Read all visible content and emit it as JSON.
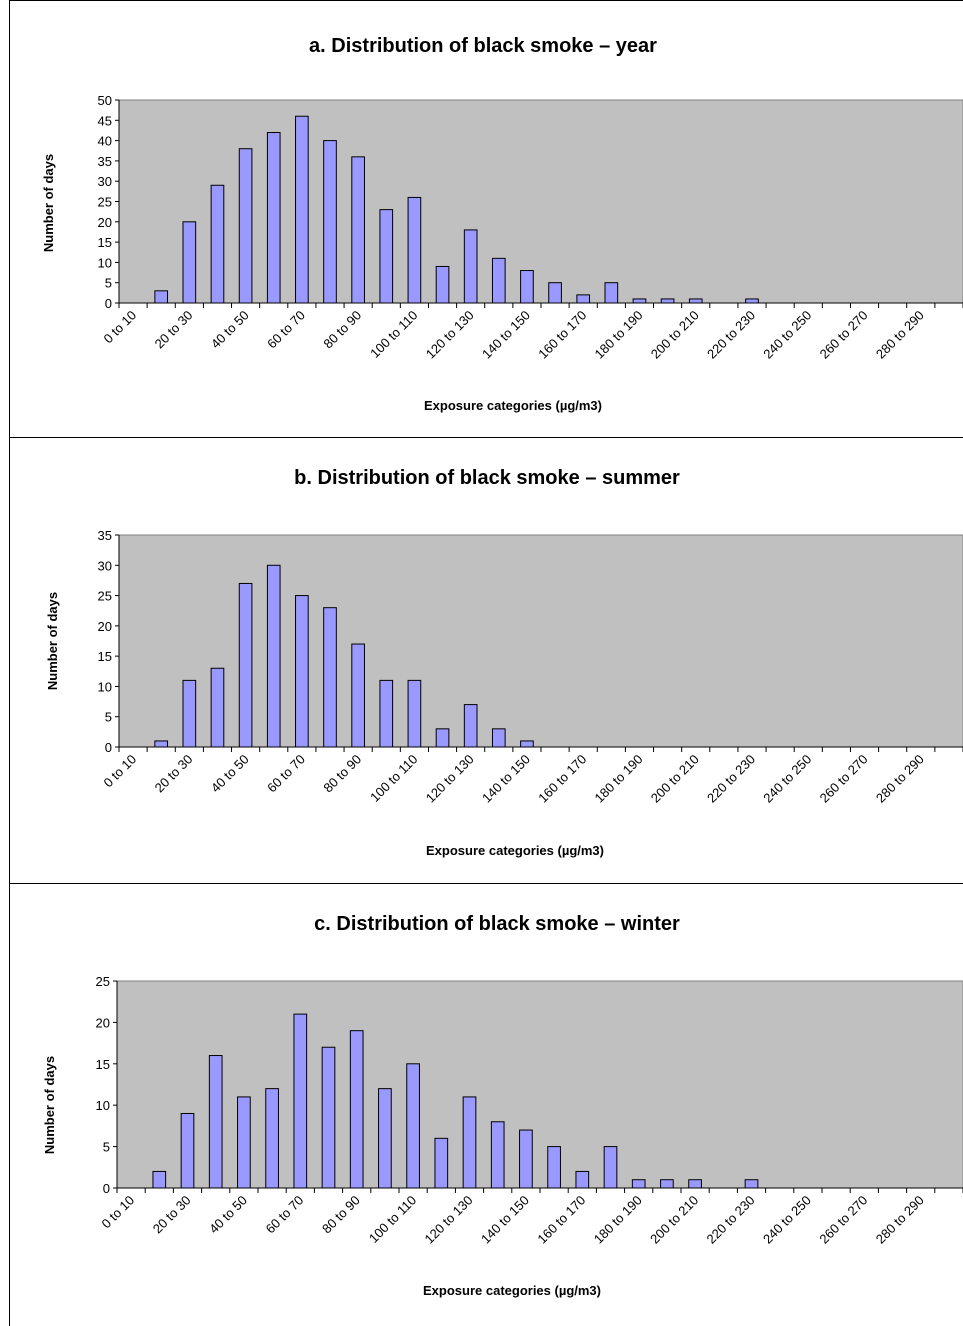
{
  "chart_data": [
    {
      "type": "bar",
      "title": "a. Distribution of black smoke – year",
      "xlabel": "Exposure categories (µg/m3)",
      "ylabel": "Number of days",
      "ylim": [
        0,
        50
      ],
      "ytick_step": 5,
      "grid": false,
      "plot_background": "#c0c0c0",
      "bar_color": "#9999ff",
      "x_tick_labels": [
        "0 to 10",
        "20 to 30",
        "40 to 50",
        "60 to 70",
        "80 to 90",
        "100 to 110",
        "120 to 130",
        "140 to 150",
        "160 to 170",
        "180 to 190",
        "200 to 210",
        "220 to 230",
        "240 to 250",
        "260 to 270",
        "280 to 290"
      ],
      "categories": [
        "0 to 10",
        "10 to 20",
        "20 to 30",
        "30 to 40",
        "40 to 50",
        "50 to 60",
        "60 to 70",
        "70 to 80",
        "80 to 90",
        "90 to 100",
        "100 to 110",
        "110 to 120",
        "120 to 130",
        "130 to 140",
        "140 to 150",
        "150 to 160",
        "160 to 170",
        "170 to 180",
        "180 to 190",
        "190 to 200",
        "200 to 210",
        "210 to 220",
        "220 to 230",
        "230 to 240",
        "240 to 250",
        "250 to 260",
        "260 to 270",
        "270 to 280",
        "280 to 290",
        "290 to 300"
      ],
      "values": [
        0,
        3,
        20,
        29,
        38,
        42,
        46,
        40,
        36,
        23,
        26,
        9,
        18,
        11,
        8,
        5,
        2,
        5,
        1,
        1,
        1,
        0,
        1,
        0,
        0,
        0,
        0,
        0,
        0,
        0
      ]
    },
    {
      "type": "bar",
      "title": "b. Distribution of black smoke – summer",
      "xlabel": "Exposure categories (µg/m3)",
      "ylabel": "Number of days",
      "ylim": [
        0,
        35
      ],
      "ytick_step": 5,
      "grid": false,
      "plot_background": "#c0c0c0",
      "bar_color": "#9999ff",
      "x_tick_labels": [
        "0 to 10",
        "20 to 30",
        "40 to 50",
        "60 to 70",
        "80 to 90",
        "100 to 110",
        "120 to 130",
        "140 to 150",
        "160 to 170",
        "180 to 190",
        "200 to 210",
        "220 to 230",
        "240 to 250",
        "260 to 270",
        "280 to 290"
      ],
      "categories": [
        "0 to 10",
        "10 to 20",
        "20 to 30",
        "30 to 40",
        "40 to 50",
        "50 to 60",
        "60 to 70",
        "70 to 80",
        "80 to 90",
        "90 to 100",
        "100 to 110",
        "110 to 120",
        "120 to 130",
        "130 to 140",
        "140 to 150",
        "150 to 160",
        "160 to 170",
        "170 to 180",
        "180 to 190",
        "190 to 200",
        "200 to 210",
        "210 to 220",
        "220 to 230",
        "230 to 240",
        "240 to 250",
        "250 to 260",
        "260 to 270",
        "270 to 280",
        "280 to 290",
        "290 to 300"
      ],
      "values": [
        0,
        1,
        11,
        13,
        27,
        30,
        25,
        23,
        17,
        11,
        11,
        3,
        7,
        3,
        1,
        0,
        0,
        0,
        0,
        0,
        0,
        0,
        0,
        0,
        0,
        0,
        0,
        0,
        0,
        0
      ]
    },
    {
      "type": "bar",
      "title": "c. Distribution of black smoke – winter",
      "xlabel": "Exposure categories (µg/m3)",
      "ylabel": "Number of days",
      "ylim": [
        0,
        25
      ],
      "ytick_step": 5,
      "grid": false,
      "plot_background": "#c0c0c0",
      "bar_color": "#9999ff",
      "x_tick_labels": [
        "0 to 10",
        "20 to 30",
        "40 to 50",
        "60 to 70",
        "80 to 90",
        "100 to 110",
        "120 to 130",
        "140 to 150",
        "160 to 170",
        "180 to 190",
        "200 to 210",
        "220 to 230",
        "240 to 250",
        "260 to 270",
        "280 to 290"
      ],
      "categories": [
        "0 to 10",
        "10 to 20",
        "20 to 30",
        "30 to 40",
        "40 to 50",
        "50 to 60",
        "60 to 70",
        "70 to 80",
        "80 to 90",
        "90 to 100",
        "100 to 110",
        "110 to 120",
        "120 to 130",
        "130 to 140",
        "140 to 150",
        "150 to 160",
        "160 to 170",
        "170 to 180",
        "180 to 190",
        "190 to 200",
        "200 to 210",
        "210 to 220",
        "220 to 230",
        "230 to 240",
        "240 to 250",
        "250 to 260",
        "260 to 270",
        "270 to 280",
        "280 to 290",
        "290 to 300"
      ],
      "values": [
        0,
        2,
        9,
        16,
        11,
        12,
        21,
        17,
        19,
        12,
        15,
        6,
        11,
        8,
        7,
        5,
        2,
        5,
        1,
        1,
        1,
        0,
        1,
        0,
        0,
        0,
        0,
        0,
        0,
        0
      ]
    }
  ]
}
